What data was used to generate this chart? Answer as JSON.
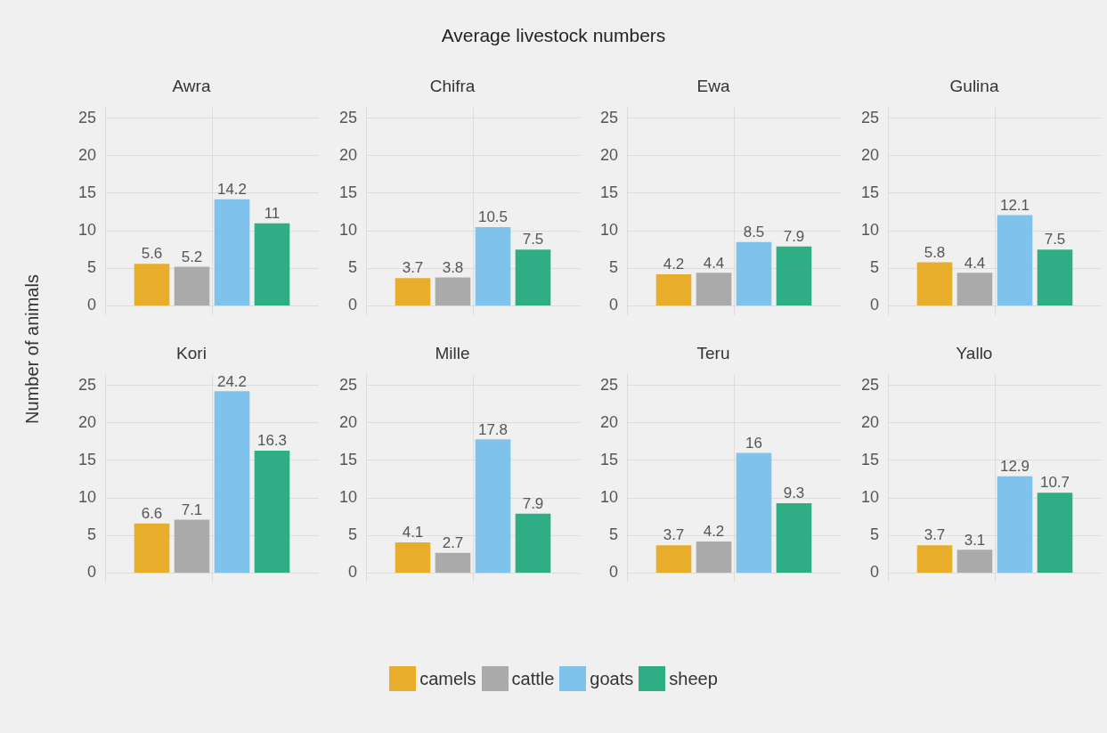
{
  "chart_data": [
    {
      "type": "other",
      "title": "Average livestock numbers"
    },
    {
      "type": "bar",
      "title": "Awra",
      "ylabel": "Number of animals",
      "categories": [
        null
      ],
      "ylim": [
        -1.2,
        26.4
      ],
      "yticks": [
        0,
        5,
        10,
        15,
        20,
        25
      ],
      "grid": true,
      "data_labels": true,
      "legend": "bottom",
      "series": [
        {
          "name": "camels",
          "color": "#e8ad2a",
          "values": [
            5.6
          ]
        },
        {
          "name": "cattle",
          "color": "#aaaaaa",
          "values": [
            5.2
          ]
        },
        {
          "name": "goats",
          "color": "#7fc3ec",
          "values": [
            14.2
          ]
        },
        {
          "name": "sheep",
          "color": "#2fad84",
          "values": [
            11
          ]
        }
      ]
    },
    {
      "type": "bar",
      "title": "Chifra",
      "categories": [
        null
      ],
      "ylim": [
        -1.2,
        26.4
      ],
      "yticks": [
        0,
        5,
        10,
        15,
        20,
        25
      ],
      "grid": true,
      "data_labels": true,
      "series": [
        {
          "color": "#e8ad2a",
          "values": [
            3.7
          ]
        },
        {
          "color": "#aaaaaa",
          "values": [
            3.8
          ]
        },
        {
          "color": "#7fc3ec",
          "values": [
            10.5
          ]
        },
        {
          "color": "#2fad84",
          "values": [
            7.5
          ]
        }
      ]
    },
    {
      "type": "bar",
      "title": "Ewa",
      "categories": [
        null
      ],
      "ylim": [
        -1.2,
        26.4
      ],
      "yticks": [
        0,
        5,
        10,
        15,
        20,
        25
      ],
      "grid": true,
      "data_labels": true,
      "series": [
        {
          "color": "#e8ad2a",
          "values": [
            4.2
          ]
        },
        {
          "color": "#aaaaaa",
          "values": [
            4.4
          ]
        },
        {
          "color": "#7fc3ec",
          "values": [
            8.5
          ]
        },
        {
          "color": "#2fad84",
          "values": [
            7.9
          ]
        }
      ]
    },
    {
      "type": "bar",
      "title": "Gulina",
      "categories": [
        null
      ],
      "ylim": [
        -1.2,
        26.4
      ],
      "yticks": [
        0,
        5,
        10,
        15,
        20,
        25
      ],
      "grid": true,
      "data_labels": true,
      "series": [
        {
          "color": "#e8ad2a",
          "values": [
            5.8
          ]
        },
        {
          "color": "#aaaaaa",
          "values": [
            4.4
          ]
        },
        {
          "color": "#7fc3ec",
          "values": [
            12.1
          ]
        },
        {
          "color": "#2fad84",
          "values": [
            7.5
          ]
        }
      ]
    },
    {
      "type": "bar",
      "title": "Kori",
      "categories": [
        null
      ],
      "ylim": [
        -1.2,
        26.4
      ],
      "yticks": [
        0,
        5,
        10,
        15,
        20,
        25
      ],
      "grid": true,
      "data_labels": true,
      "series": [
        {
          "color": "#e8ad2a",
          "values": [
            6.6
          ]
        },
        {
          "color": "#aaaaaa",
          "values": [
            7.1
          ]
        },
        {
          "color": "#7fc3ec",
          "values": [
            24.2
          ]
        },
        {
          "color": "#2fad84",
          "values": [
            16.3
          ]
        }
      ]
    },
    {
      "type": "bar",
      "title": "Mille",
      "categories": [
        null
      ],
      "ylim": [
        -1.2,
        26.4
      ],
      "yticks": [
        0,
        5,
        10,
        15,
        20,
        25
      ],
      "grid": true,
      "data_labels": true,
      "series": [
        {
          "color": "#e8ad2a",
          "values": [
            4.1
          ]
        },
        {
          "color": "#aaaaaa",
          "values": [
            2.7
          ]
        },
        {
          "color": "#7fc3ec",
          "values": [
            17.8
          ]
        },
        {
          "color": "#2fad84",
          "values": [
            7.9
          ]
        }
      ]
    },
    {
      "type": "bar",
      "title": "Teru",
      "categories": [
        null
      ],
      "ylim": [
        -1.2,
        26.4
      ],
      "yticks": [
        0,
        5,
        10,
        15,
        20,
        25
      ],
      "grid": true,
      "data_labels": true,
      "series": [
        {
          "color": "#e8ad2a",
          "values": [
            3.7
          ]
        },
        {
          "color": "#aaaaaa",
          "values": [
            4.2
          ]
        },
        {
          "color": "#7fc3ec",
          "values": [
            16
          ]
        },
        {
          "color": "#2fad84",
          "values": [
            9.3
          ]
        }
      ]
    },
    {
      "type": "bar",
      "title": "Yallo",
      "categories": [
        null
      ],
      "ylim": [
        -1.2,
        26.4
      ],
      "yticks": [
        0,
        5,
        10,
        15,
        20,
        25
      ],
      "grid": true,
      "data_labels": true,
      "series": [
        {
          "color": "#e8ad2a",
          "values": [
            3.7
          ]
        },
        {
          "color": "#aaaaaa",
          "values": [
            3.1
          ]
        },
        {
          "color": "#7fc3ec",
          "values": [
            12.9
          ]
        },
        {
          "color": "#2fad84",
          "values": [
            10.7
          ]
        }
      ]
    }
  ]
}
